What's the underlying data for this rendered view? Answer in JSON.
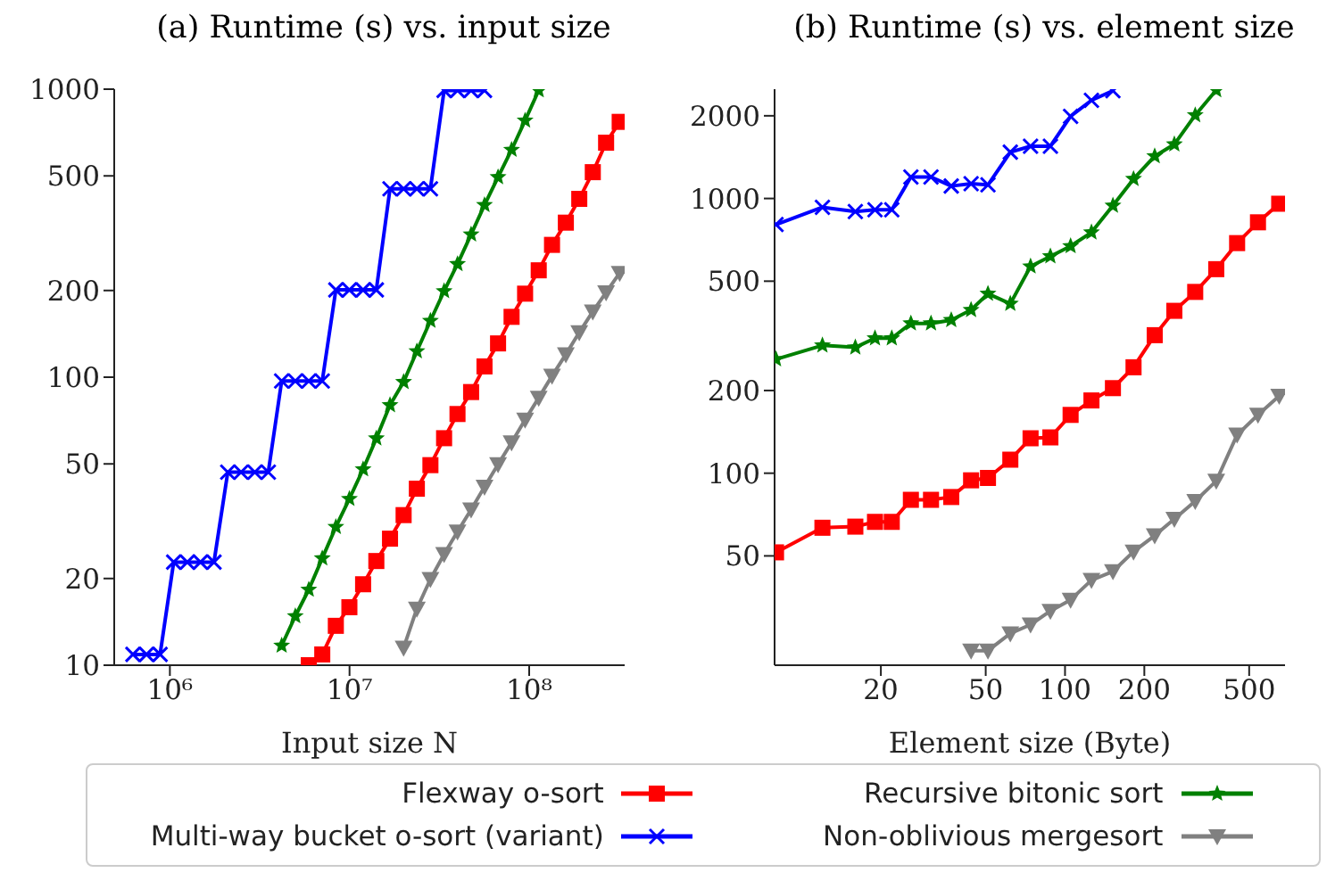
{
  "chart_data": [
    {
      "type": "line",
      "title": "(a) Runtime (s) vs. input size",
      "xlabel": "Input size N",
      "log": "xy",
      "legend": "bottom",
      "grid": false,
      "line_style": "solid",
      "xlim": [
        490000,
        340000000
      ],
      "xticks": [
        {
          "value": 1000000,
          "label": "10⁶"
        },
        {
          "value": 10000000,
          "label": "10⁷"
        },
        {
          "value": 100000000,
          "label": "10⁸"
        }
      ],
      "ylim": [
        10,
        1000
      ],
      "yticks": [
        10,
        20,
        50,
        100,
        200,
        500,
        1000
      ],
      "series": [
        {
          "name": "Flexway o-sort",
          "color": "#ff0000",
          "marker": "square",
          "x": [
            5930000,
            7050000,
            8390000,
            9980000,
            11900000,
            14100000,
            16800000,
            20000000,
            23700000,
            28200000,
            33600000,
            39900000,
            47500000,
            56400000,
            67100000,
            79800000,
            94900000,
            113000000,
            134000000,
            160000000,
            190000000,
            226000000,
            268000000,
            319000000
          ],
          "values": [
            10.0,
            10.9,
            13.7,
            15.9,
            19.1,
            23.0,
            27.5,
            33.2,
            41.0,
            49.5,
            61.4,
            74.5,
            88.8,
            109,
            131,
            162,
            195,
            235,
            288,
            344,
            416,
            515,
            652,
            770
          ]
        },
        {
          "name": "Multi-way bucket o-sort (variant)",
          "color": "#0000ff",
          "marker": "cross",
          "x": [
            623000,
            741000,
            882000,
            1050000,
            1250000,
            1480000,
            1760000,
            2100000,
            2490000,
            2970000,
            3530000,
            4190000,
            4990000,
            5930000,
            7050000,
            8390000,
            9980000,
            11900000,
            14100000,
            16800000,
            20000000,
            23700000,
            28200000,
            33600000,
            39900000,
            47500000,
            56400000
          ],
          "values": [
            10.9,
            10.9,
            10.9,
            22.8,
            22.8,
            22.8,
            22.8,
            46.8,
            46.8,
            46.8,
            46.8,
            97,
            97,
            97,
            97,
            201,
            201,
            201,
            201,
            451,
            451,
            451,
            451,
            990,
            990,
            990,
            990
          ]
        },
        {
          "name": "Recursive bitonic sort",
          "color": "#008000",
          "marker": "star",
          "x": [
            4190000,
            4990000,
            5930000,
            7050000,
            8390000,
            9980000,
            11900000,
            14100000,
            16800000,
            20000000,
            23700000,
            28200000,
            33600000,
            39900000,
            47500000,
            56400000,
            67100000,
            79800000,
            94900000,
            113000000
          ],
          "values": [
            11.7,
            14.8,
            18.3,
            23.5,
            30.2,
            37.8,
            47.9,
            61.3,
            80.0,
            96.3,
            123,
            157,
            199,
            247,
            313,
            396,
            495,
            616,
            778,
            991
          ]
        },
        {
          "name": "Non-oblivious mergesort",
          "color": "#808080",
          "marker": "triangle",
          "x": [
            20000000,
            23700000,
            28200000,
            33600000,
            39900000,
            47500000,
            56400000,
            67100000,
            79800000,
            94900000,
            113000000,
            134000000,
            160000000,
            190000000,
            226000000,
            268000000,
            319000000
          ],
          "values": [
            11.5,
            15.7,
            19.9,
            24.3,
            29.1,
            34.7,
            41.6,
            49.8,
            59.3,
            71.1,
            84.8,
            101,
            120,
            143,
            169,
            197,
            230
          ]
        }
      ]
    },
    {
      "type": "line",
      "title": "(b) Runtime (s) vs. element size",
      "xlabel": "Element size (Byte)",
      "log": "xy",
      "legend": "bottom",
      "grid": false,
      "line_style": "solid",
      "xlim": [
        7.9,
        684
      ],
      "xticks": [
        20,
        50,
        100,
        200,
        500
      ],
      "ylim": [
        20,
        2500
      ],
      "yticks": [
        50,
        100,
        200,
        500,
        1000,
        2000
      ],
      "series": [
        {
          "name": "Flexway o-sort",
          "color": "#ff0000",
          "marker": "square",
          "x": [
            8,
            12,
            16,
            19,
            22,
            26,
            31,
            37,
            44,
            51,
            62,
            74,
            88,
            105,
            126,
            152,
            182,
            219,
            260,
            312,
            375,
            450,
            540,
            650
          ],
          "values": [
            51.5,
            63.3,
            63.9,
            66.5,
            66.5,
            80,
            80,
            81.9,
            94.2,
            96.1,
            112,
            134,
            135,
            163,
            184,
            204,
            243,
            318,
            390,
            457,
            553,
            688,
            819,
            957
          ]
        },
        {
          "name": "Multi-way bucket o-sort (variant)",
          "color": "#0000ff",
          "marker": "cross",
          "x": [
            8,
            12,
            16,
            19,
            22,
            26,
            31,
            37,
            44,
            51,
            62,
            74,
            88,
            105,
            126,
            152
          ],
          "values": [
            804,
            929,
            896,
            910,
            910,
            1197,
            1197,
            1110,
            1132,
            1121,
            1475,
            1550,
            1550,
            1991,
            2277,
            2467
          ]
        },
        {
          "name": "Recursive bitonic sort",
          "color": "#008000",
          "marker": "star",
          "x": [
            8,
            12,
            16,
            19,
            22,
            26,
            31,
            37,
            44,
            51,
            62,
            74,
            88,
            105,
            126,
            152,
            182,
            219,
            260,
            312,
            375
          ],
          "values": [
            260,
            292,
            287,
            310,
            310,
            351,
            351,
            361,
            393,
            450,
            414,
            566,
            616,
            671,
            753,
            942,
            1178,
            1425,
            1575,
            2010,
            2480
          ]
        },
        {
          "name": "Non-oblivious mergesort",
          "color": "#808080",
          "marker": "triangle",
          "x": [
            44,
            51,
            62,
            74,
            88,
            105,
            126,
            152,
            182,
            219,
            260,
            312,
            375,
            450,
            540,
            650
          ],
          "values": [
            22.6,
            22.6,
            26.1,
            28.1,
            31.5,
            34.6,
            40.8,
            43.9,
            51.8,
            59.3,
            68.1,
            79.1,
            93.7,
            138,
            163,
            191
          ]
        }
      ]
    }
  ]
}
